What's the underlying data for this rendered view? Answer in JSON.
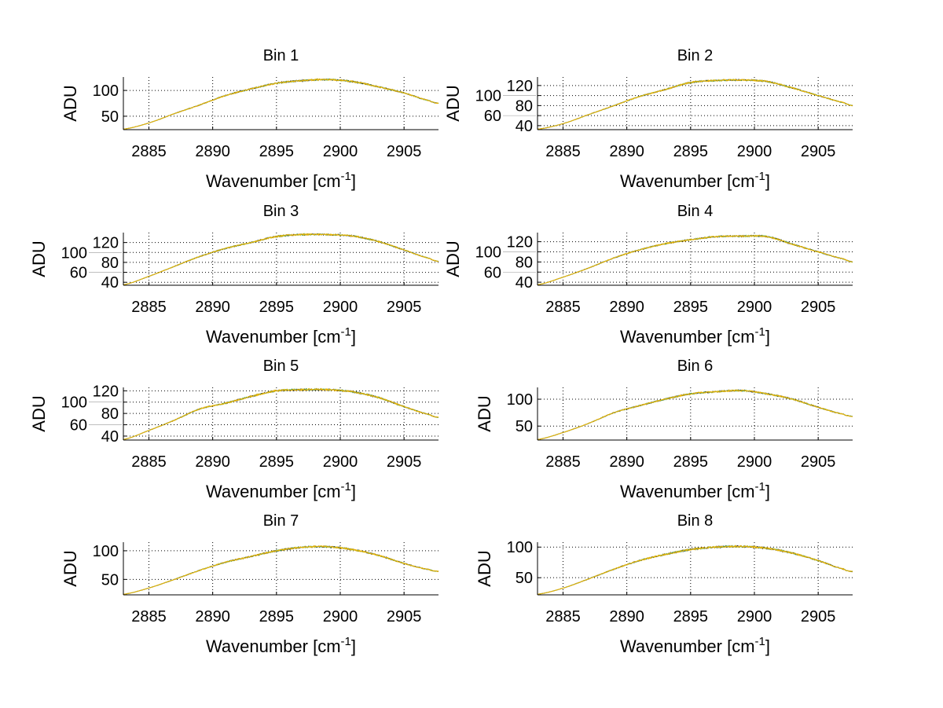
{
  "chart_data": {
    "type": "line",
    "layout": "4x2 subplots",
    "xlabel": "Wavenumber [cm",
    "xlabel_superscript": "-1",
    "xlabel_close": "]",
    "ylabel": "ADU",
    "xlim": [
      2883,
      2907.7
    ],
    "xticks": [
      2885,
      2890,
      2895,
      2900,
      2905
    ],
    "grid": true,
    "line_colors": [
      "#000000",
      "#4caf50",
      "#f0b400"
    ],
    "x": [
      2883,
      2885,
      2887,
      2889,
      2891,
      2893,
      2895,
      2897,
      2899,
      2901,
      2903,
      2905,
      2907,
      2907.7
    ],
    "subplots": [
      {
        "title": "Bin 1",
        "ylim": [
          24,
          126
        ],
        "yticks": [
          50,
          100
        ],
        "values": [
          25,
          37,
          55,
          72,
          90,
          103,
          114,
          119,
          121,
          117,
          107,
          95,
          80,
          75
        ]
      },
      {
        "title": "Bin 2",
        "ylim": [
          32,
          137
        ],
        "yticks": [
          40,
          60,
          80,
          100,
          120
        ],
        "values": [
          33,
          44,
          62,
          80,
          98,
          112,
          126,
          130,
          131,
          128,
          115,
          100,
          86,
          80
        ]
      },
      {
        "title": "Bin 3",
        "ylim": [
          34,
          140
        ],
        "yticks": [
          40,
          60,
          80,
          100,
          120
        ],
        "values": [
          35,
          52,
          72,
          92,
          108,
          120,
          132,
          136,
          136,
          133,
          122,
          105,
          88,
          82
        ]
      },
      {
        "title": "Bin 4",
        "ylim": [
          34,
          138
        ],
        "yticks": [
          40,
          60,
          80,
          100,
          120
        ],
        "values": [
          35,
          50,
          68,
          88,
          104,
          116,
          124,
          130,
          131,
          130,
          115,
          100,
          86,
          80
        ]
      },
      {
        "title": "Bin 5",
        "ylim": [
          33,
          126
        ],
        "yticks": [
          40,
          60,
          80,
          100,
          120
        ],
        "values": [
          34,
          50,
          68,
          88,
          98,
          110,
          120,
          122,
          122,
          118,
          108,
          92,
          78,
          73
        ]
      },
      {
        "title": "Bin 6",
        "ylim": [
          24,
          122
        ],
        "yticks": [
          50,
          100
        ],
        "values": [
          25,
          38,
          55,
          75,
          88,
          100,
          110,
          114,
          116,
          110,
          100,
          85,
          72,
          68
        ]
      },
      {
        "title": "Bin 7",
        "ylim": [
          23,
          115
        ],
        "yticks": [
          50,
          100
        ],
        "values": [
          24,
          35,
          50,
          66,
          80,
          90,
          100,
          106,
          107,
          102,
          92,
          78,
          67,
          64
        ]
      },
      {
        "title": "Bin 8",
        "ylim": [
          22,
          108
        ],
        "yticks": [
          50,
          100
        ],
        "values": [
          23,
          33,
          48,
          64,
          78,
          88,
          96,
          100,
          101,
          98,
          90,
          78,
          64,
          60
        ]
      }
    ]
  }
}
